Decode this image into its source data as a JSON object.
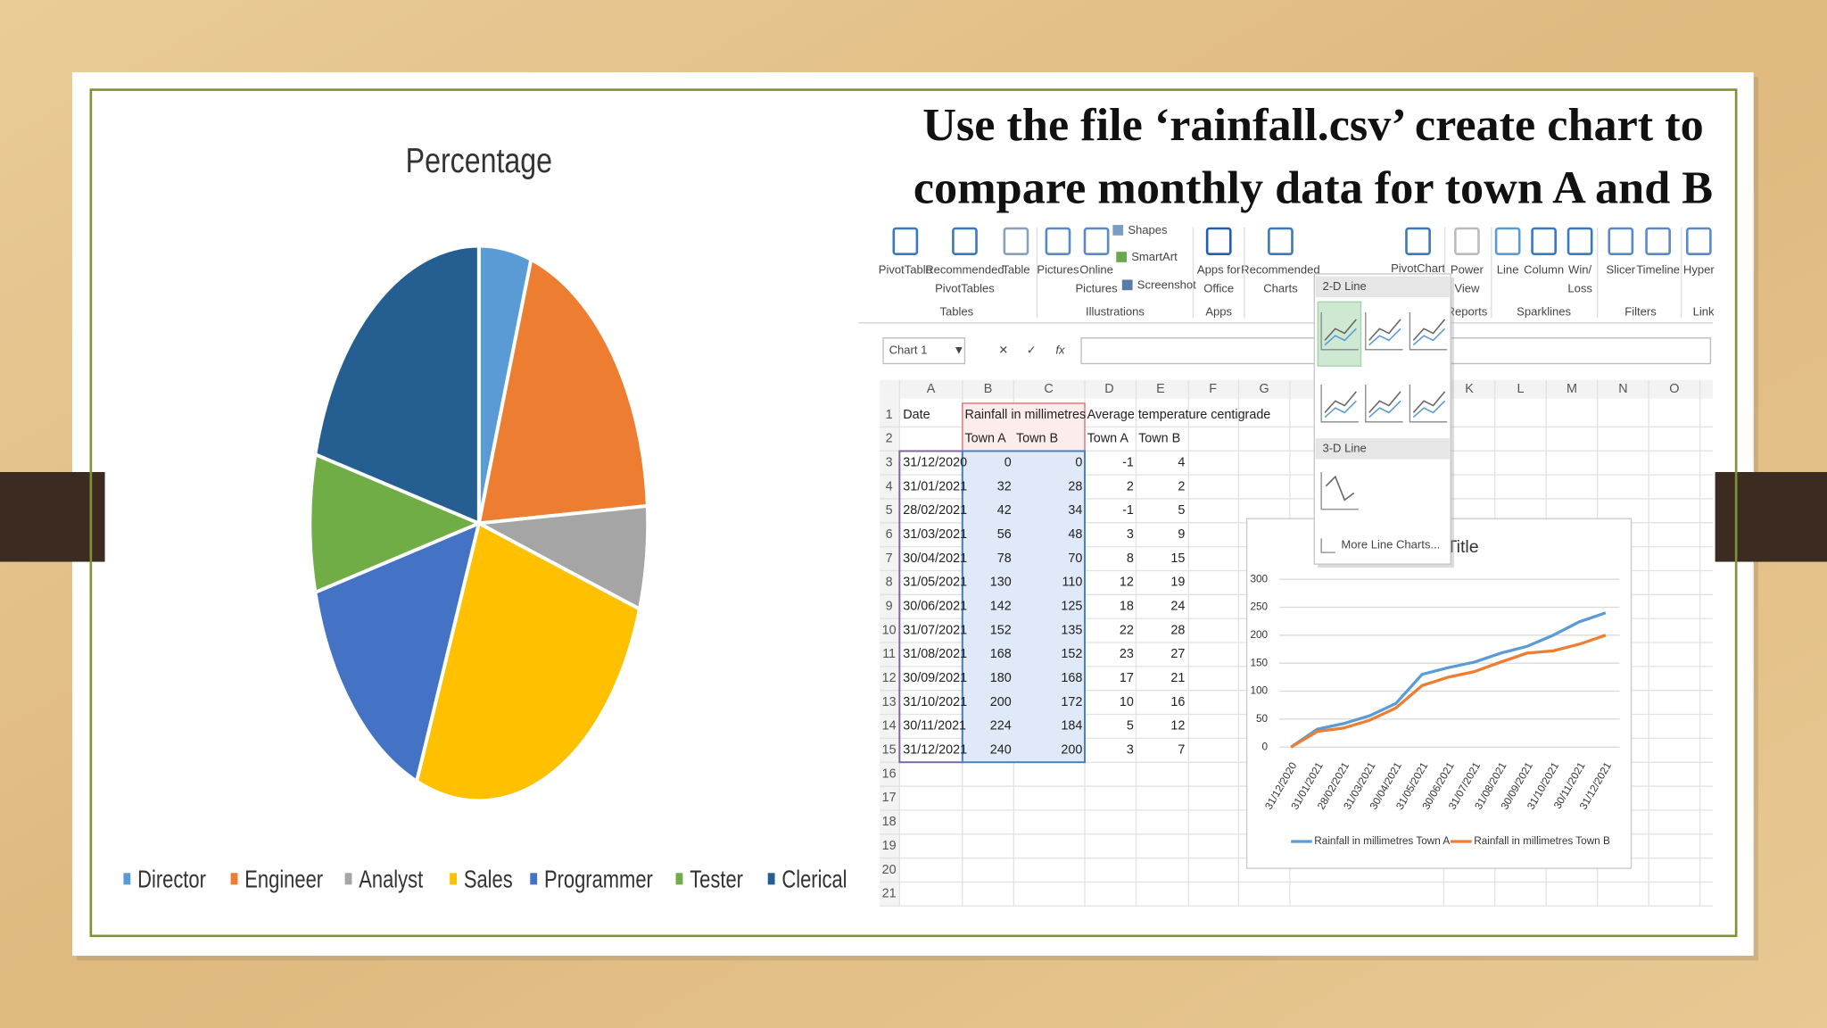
{
  "chart_data": [
    {
      "type": "pie",
      "title": "Percentage",
      "categories": [
        "Director",
        "Engineer",
        "Analyst",
        "Sales",
        "Programmer",
        "Tester",
        "Clerical"
      ],
      "values": [
        5,
        19,
        6,
        26,
        15,
        8,
        21
      ],
      "colors": [
        "#5b9bd5",
        "#ed7d31",
        "#a5a5a5",
        "#ffc000",
        "#4472c4",
        "#70ad47",
        "#255e91"
      ],
      "legend": "bottom"
    },
    {
      "type": "line",
      "title": "Chart Title",
      "categories": [
        "31/12/2020",
        "31/01/2021",
        "28/02/2021",
        "31/03/2021",
        "30/04/2021",
        "31/05/2021",
        "30/06/2021",
        "31/07/2021",
        "31/08/2021",
        "30/09/2021",
        "31/10/2021",
        "30/11/2021",
        "31/12/2021"
      ],
      "series": [
        {
          "name": "Rainfall in millimetres Town A",
          "color": "#5b9bd5",
          "values": [
            0,
            32,
            42,
            56,
            78,
            130,
            142,
            152,
            168,
            180,
            200,
            224,
            240
          ]
        },
        {
          "name": "Rainfall in millimetres Town B",
          "color": "#ed7d31",
          "values": [
            0,
            28,
            34,
            48,
            70,
            110,
            125,
            135,
            152,
            168,
            172,
            184,
            200
          ]
        }
      ],
      "ylim": [
        0,
        300
      ],
      "yticks": [
        0,
        50,
        100,
        150,
        200,
        250,
        300
      ],
      "grid": true,
      "legend": "bottom"
    }
  ],
  "slide_title": [
    "Use the file ‘rainfall.csv’ create chart to",
    "compare monthly data for town A and B"
  ],
  "ribbon": {
    "buttons": [
      [
        "PivotTable"
      ],
      [
        "Recommended",
        "PivotTables"
      ],
      [
        "Table"
      ],
      [
        "Pictures"
      ],
      [
        "Online",
        "Pictures"
      ],
      [
        "Shapes"
      ],
      [
        "SmartArt"
      ],
      [
        "Screenshot"
      ],
      [
        "Apps for",
        "Office"
      ],
      [
        "Recommended",
        "Charts"
      ],
      [
        "PivotChart"
      ],
      [
        "Power",
        "View"
      ],
      [
        "Line"
      ],
      [
        "Column"
      ],
      [
        "Win/",
        "Loss"
      ],
      [
        "Slicer"
      ],
      [
        "Timeline"
      ],
      [
        "Hyper"
      ]
    ],
    "groups": [
      "Tables",
      "Illustrations",
      "Apps",
      "Reports",
      "Sparklines",
      "Filters",
      "Link"
    ]
  },
  "name_box": "Chart 1",
  "formula_label": "fx",
  "line_menu": {
    "section_2d": "2-D Line",
    "section_3d": "3-D Line",
    "more": "More Line Charts..."
  },
  "spreadsheet": {
    "columns": [
      "A",
      "B",
      "C",
      "D",
      "E",
      "F",
      "G",
      "K",
      "L",
      "M",
      "N",
      "O"
    ],
    "row_numbers": [
      1,
      2,
      3,
      4,
      5,
      6,
      7,
      8,
      9,
      10,
      11,
      12,
      13,
      14,
      15,
      16,
      17,
      18,
      19,
      20,
      21
    ],
    "header1": [
      "Date",
      "Rainfall in millimetres",
      "Average temperature centigrade"
    ],
    "header2": [
      "Town A",
      "Town B",
      "Town A",
      "Town B"
    ],
    "rows": [
      [
        "31/12/2020",
        0,
        0,
        -1,
        4
      ],
      [
        "31/01/2021",
        32,
        28,
        2,
        2
      ],
      [
        "28/02/2021",
        42,
        34,
        -1,
        5
      ],
      [
        "31/03/2021",
        56,
        48,
        3,
        9
      ],
      [
        "30/04/2021",
        78,
        70,
        8,
        15
      ],
      [
        "31/05/2021",
        130,
        110,
        12,
        19
      ],
      [
        "30/06/2021",
        142,
        125,
        18,
        24
      ],
      [
        "31/07/2021",
        152,
        135,
        22,
        28
      ],
      [
        "31/08/2021",
        168,
        152,
        23,
        27
      ],
      [
        "30/09/2021",
        180,
        168,
        17,
        21
      ],
      [
        "31/10/2021",
        200,
        172,
        10,
        16
      ],
      [
        "30/11/2021",
        224,
        184,
        5,
        12
      ],
      [
        "31/12/2021",
        240,
        200,
        3,
        7
      ]
    ]
  }
}
